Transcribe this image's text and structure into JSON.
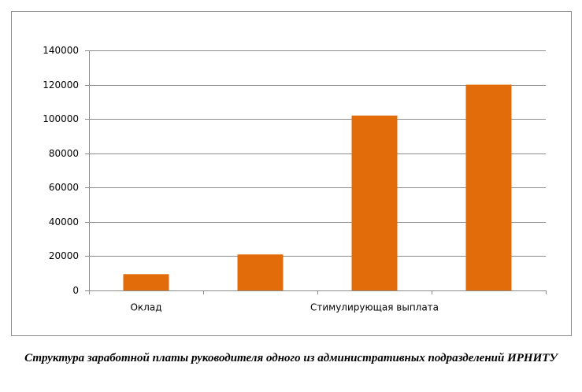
{
  "chart_data": {
    "type": "bar",
    "title": "Структура заработной платы руководителя одного из административных подразделений ИРНИТУ",
    "categories": [
      "Оклад",
      null,
      "Стимулирующая выплата",
      null
    ],
    "values": [
      9500,
      21000,
      102000,
      120000
    ],
    "color": "#e36c0a",
    "ylim": [
      0,
      140000
    ],
    "yticks": [
      0,
      20000,
      40000,
      60000,
      80000,
      100000,
      120000,
      140000
    ],
    "grid": true
  }
}
